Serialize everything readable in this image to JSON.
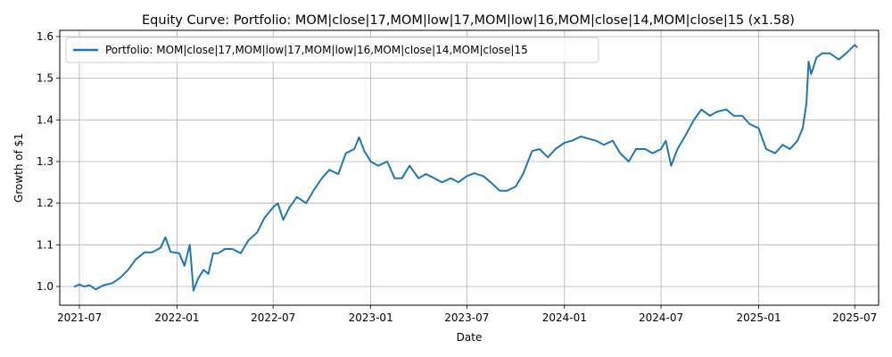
{
  "chart_data": {
    "type": "line",
    "title": "Equity Curve: Portfolio: MOM|close|17,MOM|low|17,MOM|low|16,MOM|close|14,MOM|close|15 (x1.58)",
    "xlabel": "Date",
    "ylabel": "Growth of $1",
    "x_range": [
      "2021-05-25",
      "2025-08-15"
    ],
    "ylim": [
      0.955,
      1.615
    ],
    "x_ticks": [
      {
        "date": "2021-07-01",
        "label": "2021-07"
      },
      {
        "date": "2022-01-01",
        "label": "2022-01"
      },
      {
        "date": "2022-07-01",
        "label": "2022-07"
      },
      {
        "date": "2023-01-01",
        "label": "2023-01"
      },
      {
        "date": "2023-07-01",
        "label": "2023-07"
      },
      {
        "date": "2024-01-01",
        "label": "2024-01"
      },
      {
        "date": "2024-07-01",
        "label": "2024-07"
      },
      {
        "date": "2025-01-01",
        "label": "2025-01"
      },
      {
        "date": "2025-07-01",
        "label": "2025-07"
      }
    ],
    "y_ticks": [
      {
        "value": 1.0,
        "label": "1.0"
      },
      {
        "value": 1.1,
        "label": "1.1"
      },
      {
        "value": 1.2,
        "label": "1.2"
      },
      {
        "value": 1.3,
        "label": "1.3"
      },
      {
        "value": 1.4,
        "label": "1.4"
      },
      {
        "value": 1.5,
        "label": "1.5"
      },
      {
        "value": 1.6,
        "label": "1.6"
      }
    ],
    "grid": true,
    "legend_position": "top-left",
    "series": [
      {
        "name": "Portfolio: MOM|close|17,MOM|low|17,MOM|low|16,MOM|close|14,MOM|close|15",
        "color": "#1f77b4",
        "points": [
          [
            "2021-06-22",
            1.0
          ],
          [
            "2021-07-01",
            1.005
          ],
          [
            "2021-07-10",
            1.0
          ],
          [
            "2021-07-20",
            1.003
          ],
          [
            "2021-08-01",
            0.993
          ],
          [
            "2021-08-15",
            1.003
          ],
          [
            "2021-09-01",
            1.008
          ],
          [
            "2021-09-15",
            1.02
          ],
          [
            "2021-10-01",
            1.04
          ],
          [
            "2021-10-15",
            1.065
          ],
          [
            "2021-11-01",
            1.082
          ],
          [
            "2021-11-15",
            1.082
          ],
          [
            "2021-12-01",
            1.093
          ],
          [
            "2021-12-10",
            1.118
          ],
          [
            "2021-12-20",
            1.083
          ],
          [
            "2022-01-05",
            1.08
          ],
          [
            "2022-01-15",
            1.05
          ],
          [
            "2022-01-25",
            1.1
          ],
          [
            "2022-02-01",
            0.99
          ],
          [
            "2022-02-10",
            1.02
          ],
          [
            "2022-02-20",
            1.04
          ],
          [
            "2022-03-01",
            1.03
          ],
          [
            "2022-03-10",
            1.08
          ],
          [
            "2022-03-20",
            1.08
          ],
          [
            "2022-04-01",
            1.09
          ],
          [
            "2022-04-15",
            1.09
          ],
          [
            "2022-05-01",
            1.08
          ],
          [
            "2022-05-15",
            1.11
          ],
          [
            "2022-06-01",
            1.13
          ],
          [
            "2022-06-15",
            1.165
          ],
          [
            "2022-07-01",
            1.19
          ],
          [
            "2022-07-10",
            1.2
          ],
          [
            "2022-07-20",
            1.16
          ],
          [
            "2022-08-01",
            1.19
          ],
          [
            "2022-08-15",
            1.215
          ],
          [
            "2022-09-01",
            1.2
          ],
          [
            "2022-09-15",
            1.23
          ],
          [
            "2022-10-01",
            1.26
          ],
          [
            "2022-10-15",
            1.28
          ],
          [
            "2022-11-01",
            1.27
          ],
          [
            "2022-11-15",
            1.32
          ],
          [
            "2022-12-01",
            1.33
          ],
          [
            "2022-12-10",
            1.358
          ],
          [
            "2022-12-20",
            1.325
          ],
          [
            "2023-01-01",
            1.3
          ],
          [
            "2023-01-15",
            1.29
          ],
          [
            "2023-02-01",
            1.3
          ],
          [
            "2023-02-15",
            1.26
          ],
          [
            "2023-03-01",
            1.26
          ],
          [
            "2023-03-15",
            1.29
          ],
          [
            "2023-04-01",
            1.26
          ],
          [
            "2023-04-15",
            1.27
          ],
          [
            "2023-05-01",
            1.26
          ],
          [
            "2023-05-15",
            1.25
          ],
          [
            "2023-06-01",
            1.26
          ],
          [
            "2023-06-15",
            1.25
          ],
          [
            "2023-07-01",
            1.265
          ],
          [
            "2023-07-15",
            1.272
          ],
          [
            "2023-08-01",
            1.265
          ],
          [
            "2023-08-15",
            1.25
          ],
          [
            "2023-09-01",
            1.23
          ],
          [
            "2023-09-15",
            1.23
          ],
          [
            "2023-10-01",
            1.24
          ],
          [
            "2023-10-15",
            1.27
          ],
          [
            "2023-11-01",
            1.325
          ],
          [
            "2023-11-15",
            1.33
          ],
          [
            "2023-12-01",
            1.31
          ],
          [
            "2023-12-15",
            1.33
          ],
          [
            "2024-01-01",
            1.345
          ],
          [
            "2024-01-15",
            1.35
          ],
          [
            "2024-02-01",
            1.36
          ],
          [
            "2024-02-15",
            1.355
          ],
          [
            "2024-03-01",
            1.35
          ],
          [
            "2024-03-15",
            1.34
          ],
          [
            "2024-04-01",
            1.35
          ],
          [
            "2024-04-15",
            1.32
          ],
          [
            "2024-05-01",
            1.3
          ],
          [
            "2024-05-15",
            1.33
          ],
          [
            "2024-06-01",
            1.33
          ],
          [
            "2024-06-15",
            1.32
          ],
          [
            "2024-07-01",
            1.33
          ],
          [
            "2024-07-10",
            1.35
          ],
          [
            "2024-07-20",
            1.29
          ],
          [
            "2024-08-01",
            1.33
          ],
          [
            "2024-08-15",
            1.36
          ],
          [
            "2024-09-01",
            1.4
          ],
          [
            "2024-09-15",
            1.425
          ],
          [
            "2024-10-01",
            1.41
          ],
          [
            "2024-10-15",
            1.42
          ],
          [
            "2024-11-01",
            1.425
          ],
          [
            "2024-11-15",
            1.41
          ],
          [
            "2024-12-01",
            1.41
          ],
          [
            "2024-12-15",
            1.39
          ],
          [
            "2025-01-01",
            1.38
          ],
          [
            "2025-01-15",
            1.33
          ],
          [
            "2025-02-01",
            1.32
          ],
          [
            "2025-02-15",
            1.34
          ],
          [
            "2025-03-01",
            1.33
          ],
          [
            "2025-03-15",
            1.35
          ],
          [
            "2025-03-25",
            1.38
          ],
          [
            "2025-04-01",
            1.44
          ],
          [
            "2025-04-05",
            1.54
          ],
          [
            "2025-04-10",
            1.51
          ],
          [
            "2025-04-20",
            1.55
          ],
          [
            "2025-05-01",
            1.56
          ],
          [
            "2025-05-15",
            1.56
          ],
          [
            "2025-06-01",
            1.545
          ],
          [
            "2025-06-15",
            1.56
          ],
          [
            "2025-07-01",
            1.58
          ],
          [
            "2025-07-05",
            1.575
          ]
        ]
      }
    ]
  }
}
